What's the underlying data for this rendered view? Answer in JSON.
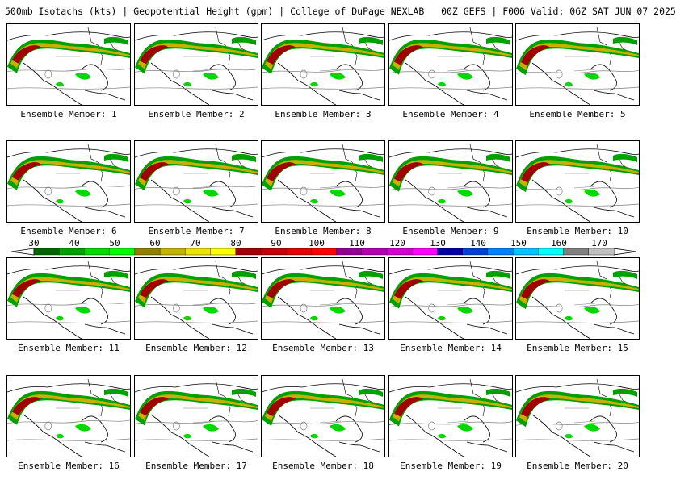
{
  "header": {
    "title": "500mb Isotachs (kts) | Geopotential Height (gpm) | College of DuPage NEXLAB",
    "run_info": "00Z GEFS | F006 Valid: 06Z SAT JUN 07 2025"
  },
  "legend": {
    "ticks": [
      "30",
      "40",
      "50",
      "60",
      "70",
      "80",
      "90",
      "100",
      "110",
      "120",
      "130",
      "140",
      "150",
      "160",
      "170"
    ],
    "colors": [
      "#006400",
      "#00a000",
      "#00d800",
      "#00ff00",
      "#908000",
      "#c8b000",
      "#f0e000",
      "#ffff00",
      "#a00000",
      "#c00000",
      "#e00000",
      "#ff0000",
      "#900090",
      "#b000b0",
      "#d000d0",
      "#ff00ff",
      "#0000a0",
      "#0040d0",
      "#0080ff",
      "#00c0ff",
      "#00ffff",
      "#808080",
      "#c0c0c0"
    ]
  },
  "members": [
    {
      "label": "Ensemble Member: 1"
    },
    {
      "label": "Ensemble Member: 2"
    },
    {
      "label": "Ensemble Member: 3"
    },
    {
      "label": "Ensemble Member: 4"
    },
    {
      "label": "Ensemble Member: 5"
    },
    {
      "label": "Ensemble Member: 6"
    },
    {
      "label": "Ensemble Member: 7"
    },
    {
      "label": "Ensemble Member: 8"
    },
    {
      "label": "Ensemble Member: 9"
    },
    {
      "label": "Ensemble Member: 10"
    },
    {
      "label": "Ensemble Member: 11"
    },
    {
      "label": "Ensemble Member: 12"
    },
    {
      "label": "Ensemble Member: 13"
    },
    {
      "label": "Ensemble Member: 14"
    },
    {
      "label": "Ensemble Member: 15"
    },
    {
      "label": "Ensemble Member: 16"
    },
    {
      "label": "Ensemble Member: 17"
    },
    {
      "label": "Ensemble Member: 18"
    },
    {
      "label": "Ensemble Member: 19"
    },
    {
      "label": "Ensemble Member: 20"
    }
  ]
}
